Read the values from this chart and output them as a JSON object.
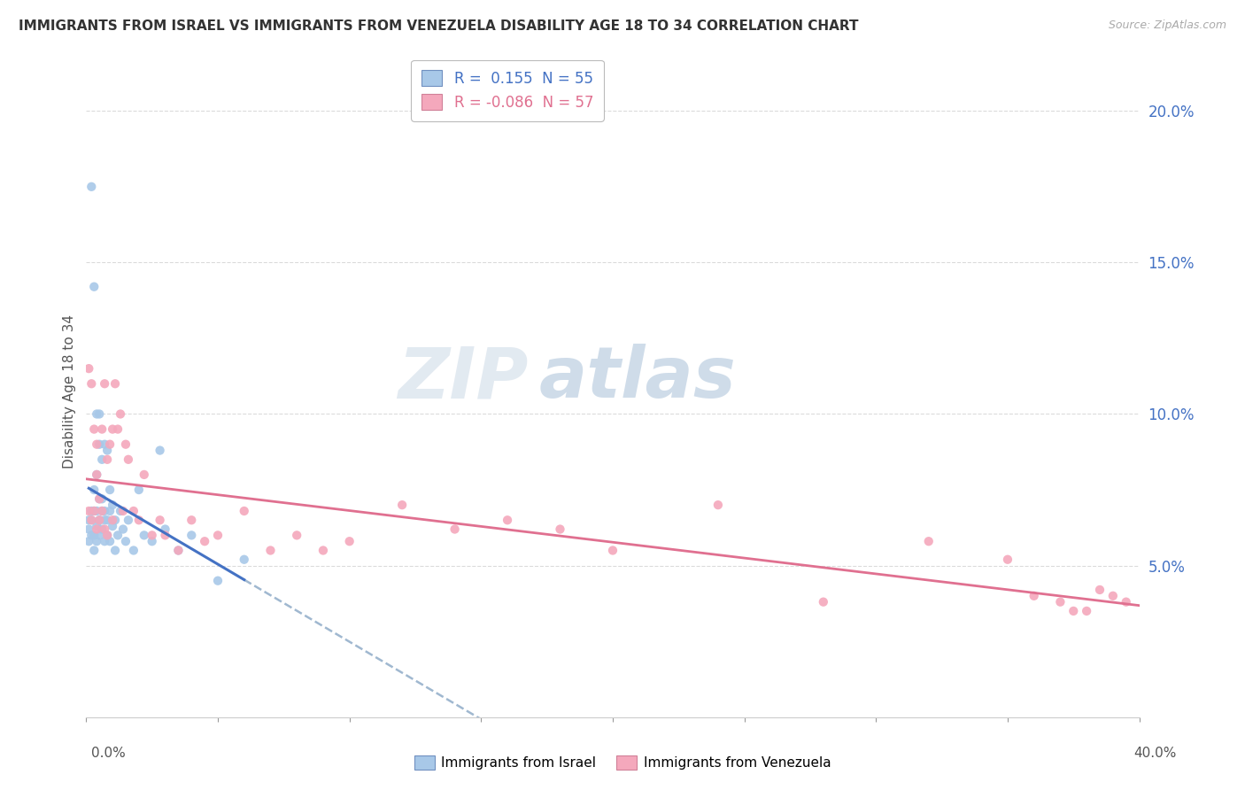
{
  "title": "IMMIGRANTS FROM ISRAEL VS IMMIGRANTS FROM VENEZUELA DISABILITY AGE 18 TO 34 CORRELATION CHART",
  "source": "Source: ZipAtlas.com",
  "ylabel": "Disability Age 18 to 34",
  "y_ticks": [
    0.05,
    0.1,
    0.15,
    0.2
  ],
  "x_lim": [
    0.0,
    0.4
  ],
  "y_lim": [
    0.0,
    0.215
  ],
  "israel_color": "#a8c8e8",
  "venezuela_color": "#f4a8bc",
  "israel_line_color": "#4472c4",
  "venezuela_line_color": "#e07090",
  "dashed_line_color": "#a0b8d0",
  "israel_R": 0.155,
  "israel_N": 55,
  "venezuela_R": -0.086,
  "venezuela_N": 57,
  "legend_label_israel": "Immigrants from Israel",
  "legend_label_venezuela": "Immigrants from Venezuela",
  "watermark_zip": "ZIP",
  "watermark_atlas": "atlas",
  "israel_x": [
    0.001,
    0.001,
    0.001,
    0.002,
    0.002,
    0.002,
    0.002,
    0.003,
    0.003,
    0.003,
    0.003,
    0.003,
    0.004,
    0.004,
    0.004,
    0.004,
    0.004,
    0.005,
    0.005,
    0.005,
    0.005,
    0.005,
    0.006,
    0.006,
    0.006,
    0.006,
    0.007,
    0.007,
    0.007,
    0.007,
    0.008,
    0.008,
    0.008,
    0.009,
    0.009,
    0.009,
    0.01,
    0.01,
    0.011,
    0.011,
    0.012,
    0.013,
    0.014,
    0.015,
    0.016,
    0.018,
    0.02,
    0.022,
    0.025,
    0.028,
    0.03,
    0.035,
    0.04,
    0.05,
    0.06
  ],
  "israel_y": [
    0.065,
    0.062,
    0.058,
    0.175,
    0.068,
    0.065,
    0.06,
    0.142,
    0.075,
    0.068,
    0.06,
    0.055,
    0.1,
    0.08,
    0.068,
    0.063,
    0.058,
    0.1,
    0.09,
    0.072,
    0.065,
    0.06,
    0.085,
    0.072,
    0.068,
    0.062,
    0.09,
    0.068,
    0.065,
    0.058,
    0.088,
    0.065,
    0.06,
    0.075,
    0.068,
    0.058,
    0.07,
    0.063,
    0.065,
    0.055,
    0.06,
    0.068,
    0.062,
    0.058,
    0.065,
    0.055,
    0.075,
    0.06,
    0.058,
    0.088,
    0.062,
    0.055,
    0.06,
    0.045,
    0.052
  ],
  "venezuela_x": [
    0.001,
    0.001,
    0.002,
    0.002,
    0.003,
    0.003,
    0.004,
    0.004,
    0.004,
    0.005,
    0.005,
    0.006,
    0.006,
    0.007,
    0.007,
    0.008,
    0.008,
    0.009,
    0.01,
    0.01,
    0.011,
    0.012,
    0.013,
    0.014,
    0.015,
    0.016,
    0.018,
    0.02,
    0.022,
    0.025,
    0.028,
    0.03,
    0.035,
    0.04,
    0.045,
    0.05,
    0.06,
    0.07,
    0.08,
    0.09,
    0.1,
    0.12,
    0.14,
    0.16,
    0.18,
    0.2,
    0.24,
    0.28,
    0.32,
    0.35,
    0.36,
    0.37,
    0.375,
    0.38,
    0.385,
    0.39,
    0.395
  ],
  "venezuela_y": [
    0.068,
    0.115,
    0.11,
    0.065,
    0.095,
    0.068,
    0.09,
    0.08,
    0.062,
    0.072,
    0.065,
    0.095,
    0.068,
    0.11,
    0.062,
    0.085,
    0.06,
    0.09,
    0.095,
    0.065,
    0.11,
    0.095,
    0.1,
    0.068,
    0.09,
    0.085,
    0.068,
    0.065,
    0.08,
    0.06,
    0.065,
    0.06,
    0.055,
    0.065,
    0.058,
    0.06,
    0.068,
    0.055,
    0.06,
    0.055,
    0.058,
    0.07,
    0.062,
    0.065,
    0.062,
    0.055,
    0.07,
    0.038,
    0.058,
    0.052,
    0.04,
    0.038,
    0.035,
    0.035,
    0.042,
    0.04,
    0.038
  ]
}
